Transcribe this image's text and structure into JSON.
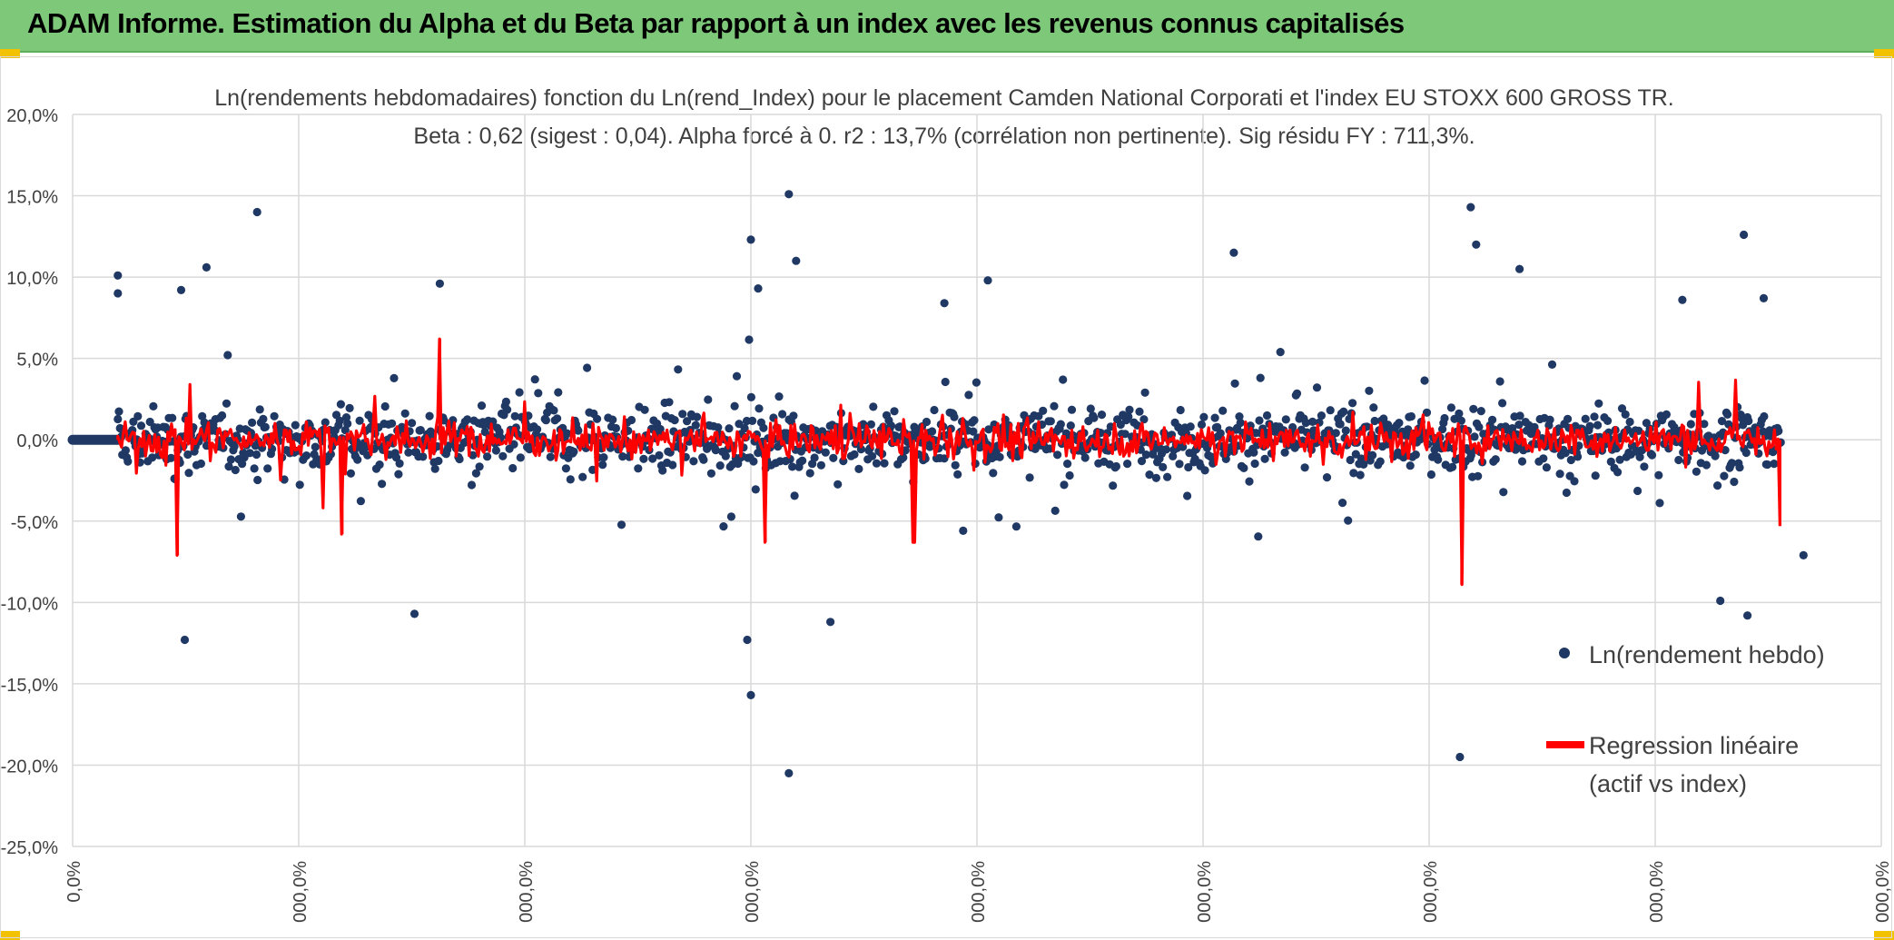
{
  "header": {
    "title": "ADAM Informe. Estimation du Alpha et du Beta par rapport à un index avec les revenus connus capitalisés"
  },
  "colors": {
    "header_bg": "#7ec87a",
    "scatter": "#1f3864",
    "regression": "#ff0000",
    "grid": "#d9d9d9",
    "accent": "#f2c200"
  },
  "chart_data": {
    "type": "scatter",
    "title": "Ln(rendements hebdomadaires) fonction du Ln(rend_Index) pour le placement Camden National Corporati et l'index EU STOXX 600 GROSS TR.",
    "subtitle": "Beta : 0,62 (sigest : 0,04). Alpha forcé à 0. r2 : 13,7% (corrélation non pertinente). Sig résidu FY : 711,3%.",
    "y_tick_labels": [
      "20,0%",
      "15,0%",
      "10,0%",
      "5,0%",
      "0,0%",
      "-5,0%",
      "-10,0%",
      "-15,0%",
      "-20,0%",
      "-25,0%"
    ],
    "x_tick_labels": [
      "0,0%",
      "000,0%",
      "000,0%",
      "000,0%",
      "000,0%",
      "000,0%",
      "000,0%",
      "000,0%",
      "000,0%"
    ],
    "ylim": [
      -25,
      20
    ],
    "grid": true,
    "legend_position": "right",
    "series": [
      {
        "name": "Ln(rendement hebdo)",
        "kind": "scatter",
        "notable_points": [
          {
            "x": 0.025,
            "y": 10.1
          },
          {
            "x": 0.025,
            "y": 9.0
          },
          {
            "x": 0.06,
            "y": 9.2
          },
          {
            "x": 0.074,
            "y": 10.6
          },
          {
            "x": 0.102,
            "y": 14.0
          },
          {
            "x": 0.062,
            "y": -12.3
          },
          {
            "x": 0.189,
            "y": -10.7
          },
          {
            "x": 0.203,
            "y": 9.6
          },
          {
            "x": 0.375,
            "y": 12.3
          },
          {
            "x": 0.379,
            "y": 9.3
          },
          {
            "x": 0.396,
            "y": 15.1
          },
          {
            "x": 0.4,
            "y": 11.0
          },
          {
            "x": 0.373,
            "y": -12.3
          },
          {
            "x": 0.375,
            "y": -15.7
          },
          {
            "x": 0.396,
            "y": -20.5
          },
          {
            "x": 0.419,
            "y": -11.2
          },
          {
            "x": 0.482,
            "y": 8.4
          },
          {
            "x": 0.506,
            "y": 9.8
          },
          {
            "x": 0.642,
            "y": 11.5
          },
          {
            "x": 0.773,
            "y": 14.3
          },
          {
            "x": 0.776,
            "y": 12.0
          },
          {
            "x": 0.8,
            "y": 10.5
          },
          {
            "x": 0.767,
            "y": -19.5
          },
          {
            "x": 0.89,
            "y": 8.6
          },
          {
            "x": 0.924,
            "y": 12.6
          },
          {
            "x": 0.935,
            "y": 8.7
          },
          {
            "x": 0.911,
            "y": -9.9
          },
          {
            "x": 0.926,
            "y": -10.8
          },
          {
            "x": 0.957,
            "y": -7.1
          }
        ]
      },
      {
        "name": "Regression linéaire",
        "name_line2": "(actif vs index)",
        "kind": "line",
        "notable_points": [
          {
            "x": 0.058,
            "y": -7.1
          },
          {
            "x": 0.149,
            "y": -5.8
          },
          {
            "x": 0.203,
            "y": 6.2
          },
          {
            "x": 0.383,
            "y": -6.3
          },
          {
            "x": 0.465,
            "y": -6.3
          },
          {
            "x": 0.768,
            "y": -8.9
          },
          {
            "x": 0.944,
            "y": -5.3
          }
        ]
      }
    ]
  }
}
